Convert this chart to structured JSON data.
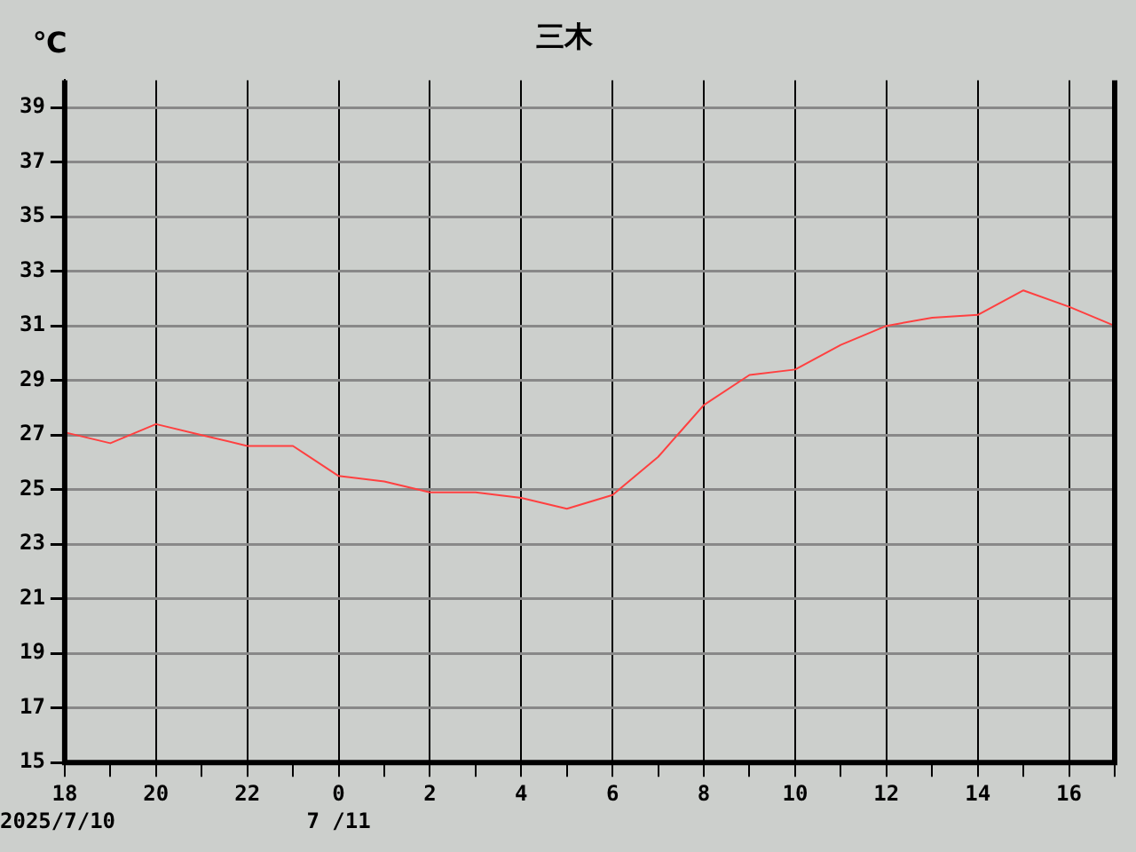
{
  "chart_data": {
    "type": "line",
    "title": "三木",
    "ylabel": "℃",
    "categories": [
      "18",
      null,
      "20",
      null,
      "22",
      null,
      "0",
      null,
      "2",
      null,
      "4",
      null,
      "6",
      null,
      "8",
      null,
      "10",
      null,
      "12",
      null,
      "14",
      null,
      "16",
      null
    ],
    "series": [
      {
        "color": "#ff4040",
        "values": [
          27.1,
          26.7,
          27.4,
          27.0,
          26.6,
          26.6,
          25.5,
          25.3,
          24.9,
          24.9,
          24.7,
          24.3,
          24.8,
          26.2,
          28.1,
          29.2,
          29.4,
          30.3,
          31.0,
          31.3,
          31.4,
          32.3,
          31.7,
          31.0
        ]
      }
    ],
    "annotations": [
      "2025/7/10",
      "7 /11"
    ],
    "ylim": [
      15,
      40
    ],
    "yticks": [
      15,
      17,
      19,
      21,
      23,
      25,
      27,
      29,
      31,
      33,
      35,
      37,
      39
    ],
    "grid": true,
    "legend": false,
    "marker": "none",
    "line_style": "solid"
  }
}
